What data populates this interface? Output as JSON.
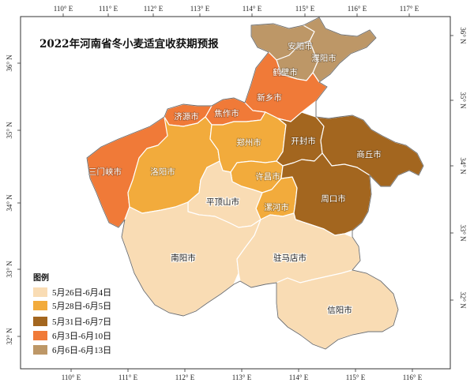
{
  "map": {
    "title": "2022年河南省冬小麦适宜收获期预报",
    "top_ticks": [
      "110° E",
      "111° E",
      "112° E",
      "113° E",
      "114° E",
      "115° E",
      "116° E",
      "117° E"
    ],
    "bottom_ticks": [
      "110° E",
      "111° E",
      "112° E",
      "113° E",
      "114° E",
      "115° E",
      "116° E"
    ],
    "left_ticks": [
      "36° N",
      "35° N",
      "34° N",
      "33° N",
      "32° N"
    ],
    "right_ticks": [
      "36° N",
      "35° N",
      "34° N",
      "33° N",
      "32° N"
    ],
    "legend": {
      "title": "图例",
      "items": [
        {
          "label": "5月26日-6月4日",
          "color": "#f9dcb4"
        },
        {
          "label": "5月28日-6月5日",
          "color": "#f2ab3c"
        },
        {
          "label": "5月31日-6月7日",
          "color": "#a3661f"
        },
        {
          "label": "6月3日-6月10日",
          "color": "#f07a38"
        },
        {
          "label": "6月6日-6月13日",
          "color": "#bd9767"
        }
      ]
    },
    "cities": [
      {
        "name": "安阳市",
        "category": 4
      },
      {
        "name": "濮阳市",
        "category": 4
      },
      {
        "name": "鹤壁市",
        "category": 4
      },
      {
        "name": "新乡市",
        "category": 3
      },
      {
        "name": "焦作市",
        "category": 3
      },
      {
        "name": "济源市",
        "category": 3
      },
      {
        "name": "三门峡市",
        "category": 3
      },
      {
        "name": "洛阳市",
        "category": 1
      },
      {
        "name": "郑州市",
        "category": 1
      },
      {
        "name": "开封市",
        "category": 2
      },
      {
        "name": "商丘市",
        "category": 2
      },
      {
        "name": "许昌市",
        "category": 1
      },
      {
        "name": "漯河市",
        "category": 1
      },
      {
        "name": "周口市",
        "category": 2
      },
      {
        "name": "平顶山市",
        "category": 0
      },
      {
        "name": "南阳市",
        "category": 0
      },
      {
        "name": "驻马店市",
        "category": 0
      },
      {
        "name": "信阳市",
        "category": 0
      }
    ]
  }
}
